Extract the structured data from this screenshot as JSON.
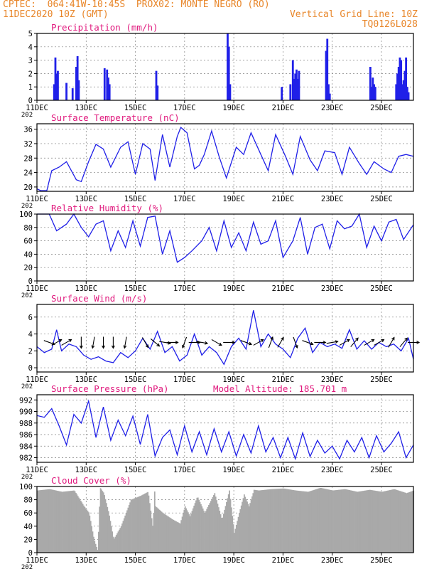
{
  "header": {
    "line1_left": "CPTEC:  064:41W-10:45S  PROX02: MONTE NEGRO (RO)",
    "line2_left": "11DEC2020 10Z (GMT)",
    "line2_right": "Vertical Grid Line: 10Z",
    "line3_right": "TQ0126L028"
  },
  "colors": {
    "header": "#e8862a",
    "title": "#e0197d",
    "line": "#2020e8",
    "bar": "#2020e8",
    "cloud": "#a9a9a9",
    "grid": "#808080"
  },
  "x_axis": {
    "ticks": [
      "11DEC",
      "13DEC",
      "15DEC",
      "17DEC",
      "19DEC",
      "21DEC",
      "23DEC",
      "25DEC"
    ],
    "year_stub": "202",
    "start_day": 11,
    "end_day": 26.3
  },
  "chart_data": [
    {
      "id": "precip",
      "type": "bar",
      "title": "Precipitation (mm/h)",
      "ylim": [
        0,
        5
      ],
      "yticks": [
        0,
        1,
        2,
        3,
        4,
        5
      ],
      "x": [
        11.7,
        11.75,
        11.8,
        11.85,
        12.2,
        12.45,
        12.6,
        12.65,
        12.7,
        13.75,
        13.85,
        13.9,
        13.95,
        15.85,
        15.9,
        18.75,
        18.8,
        18.85,
        20.95,
        21.3,
        21.4,
        21.45,
        21.5,
        21.55,
        21.6,
        21.65,
        22.75,
        22.8,
        22.85,
        22.9,
        24.55,
        24.6,
        24.65,
        24.7,
        24.75,
        25.6,
        25.65,
        25.7,
        25.75,
        25.8,
        25.85,
        25.9,
        25.95,
        26.0,
        26.05,
        26.1
      ],
      "values": [
        1.2,
        3.2,
        2.0,
        2.2,
        1.3,
        0.9,
        2.5,
        3.3,
        1.5,
        2.4,
        2.3,
        1.7,
        1.2,
        2.2,
        1.1,
        5.0,
        4.0,
        1.2,
        1.0,
        1.2,
        3.0,
        1.6,
        2.0,
        2.3,
        1.6,
        2.2,
        3.7,
        4.6,
        1.2,
        0.5,
        2.5,
        1.0,
        1.7,
        1.2,
        1.0,
        1.2,
        2.0,
        2.5,
        3.2,
        3.0,
        1.2,
        1.5,
        2.2,
        3.2,
        1.0,
        0.6
      ]
    },
    {
      "id": "temp",
      "type": "line",
      "title": "Surface Temperature (nC)",
      "ylim": [
        18.8,
        37.5
      ],
      "yticks": [
        20,
        24,
        28,
        32,
        36
      ],
      "x": [
        11,
        11.15,
        11.4,
        11.6,
        11.9,
        12.2,
        12.6,
        12.8,
        13.1,
        13.4,
        13.7,
        14.0,
        14.4,
        14.7,
        15.0,
        15.3,
        15.6,
        15.8,
        16.1,
        16.4,
        16.7,
        16.85,
        17.1,
        17.4,
        17.6,
        17.8,
        18.1,
        18.4,
        18.7,
        19.1,
        19.4,
        19.7,
        20.1,
        20.4,
        20.7,
        21.1,
        21.4,
        21.7,
        22.1,
        22.4,
        22.7,
        23.1,
        23.4,
        23.7,
        24.1,
        24.4,
        24.7,
        25.1,
        25.4,
        25.7,
        26.0,
        26.3
      ],
      "values": [
        19.5,
        19.0,
        19.0,
        24.5,
        25.5,
        27.0,
        22.0,
        21.5,
        27.0,
        31.8,
        30.5,
        25.5,
        31.0,
        32.5,
        23.5,
        32.0,
        30.5,
        21.8,
        34.5,
        25.5,
        34.0,
        36.5,
        35.0,
        25.0,
        26.0,
        29.0,
        35.5,
        28.5,
        22.5,
        31.0,
        29.0,
        35.0,
        29.0,
        24.5,
        34.5,
        28.5,
        23.5,
        34.0,
        27.5,
        24.5,
        30.0,
        29.5,
        23.5,
        31.0,
        26.5,
        23.5,
        27.0,
        25.0,
        24.0,
        28.5,
        29.0,
        28.5
      ]
    },
    {
      "id": "rh",
      "type": "line",
      "title": "Relative Humidity (%)",
      "ylim": [
        0,
        100
      ],
      "yticks": [
        0,
        20,
        40,
        60,
        80,
        100
      ],
      "x": [
        11,
        11.5,
        11.8,
        12.2,
        12.5,
        12.8,
        13.1,
        13.4,
        13.7,
        14.0,
        14.3,
        14.6,
        14.9,
        15.2,
        15.5,
        15.8,
        16.1,
        16.4,
        16.7,
        17.0,
        17.3,
        17.7,
        18.0,
        18.3,
        18.6,
        18.9,
        19.2,
        19.5,
        19.8,
        20.1,
        20.4,
        20.7,
        21.0,
        21.4,
        21.7,
        22.0,
        22.3,
        22.6,
        22.9,
        23.2,
        23.5,
        23.8,
        24.1,
        24.4,
        24.7,
        25.0,
        25.3,
        25.6,
        25.9,
        26.3
      ],
      "values": [
        100,
        100,
        75,
        85,
        100,
        80,
        66,
        85,
        90,
        45,
        75,
        50,
        90,
        52,
        95,
        97,
        40,
        75,
        28,
        35,
        45,
        60,
        80,
        45,
        90,
        50,
        72,
        45,
        88,
        55,
        60,
        90,
        35,
        60,
        95,
        40,
        80,
        85,
        48,
        90,
        78,
        82,
        100,
        50,
        82,
        60,
        88,
        92,
        62,
        84
      ]
    },
    {
      "id": "wind",
      "type": "line",
      "title": "Surface Wind (m/s)",
      "ylim": [
        -0.5,
        7.5
      ],
      "yticks": [
        0,
        2,
        4,
        6
      ],
      "x": [
        11,
        11.3,
        11.6,
        11.8,
        12.0,
        12.3,
        12.6,
        12.9,
        13.2,
        13.5,
        13.8,
        14.1,
        14.4,
        14.7,
        15.0,
        15.3,
        15.6,
        15.9,
        16.2,
        16.5,
        16.8,
        17.1,
        17.4,
        17.7,
        18.0,
        18.3,
        18.6,
        18.9,
        19.2,
        19.5,
        19.8,
        20.1,
        20.4,
        20.7,
        21.0,
        21.3,
        21.6,
        21.9,
        22.2,
        22.5,
        22.8,
        23.1,
        23.4,
        23.7,
        24.0,
        24.3,
        24.6,
        24.9,
        25.2,
        25.5,
        25.8,
        26.1,
        26.3
      ],
      "values": [
        2.5,
        1.8,
        2.2,
        4.5,
        2.0,
        2.8,
        2.5,
        1.5,
        1.0,
        1.3,
        0.8,
        0.6,
        1.8,
        1.2,
        2.0,
        3.5,
        2.2,
        4.3,
        1.8,
        2.5,
        0.8,
        1.5,
        4.0,
        1.5,
        2.5,
        1.8,
        0.4,
        2.5,
        3.5,
        2.2,
        6.8,
        2.5,
        4.0,
        2.8,
        2.2,
        1.2,
        3.5,
        4.7,
        1.8,
        3.0,
        2.5,
        2.8,
        2.3,
        4.5,
        2.2,
        3.2,
        2.2,
        3.0,
        2.5,
        2.8,
        2.0,
        3.5,
        1.0
      ],
      "arrows": {
        "x": [
          11.5,
          11.8,
          12.2,
          12.8,
          13.3,
          13.7,
          14.1,
          14.6,
          15.4,
          15.8,
          16.2,
          16.5,
          17.0,
          17.4,
          17.7,
          18.3,
          18.8,
          19.5,
          20.0,
          20.5,
          20.9,
          21.5,
          22.0,
          22.5,
          23.0,
          23.5,
          23.9,
          24.5,
          24.9,
          25.4,
          25.9,
          26.3
        ],
        "angle_deg": [
          110,
          60,
          60,
          180,
          190,
          180,
          180,
          190,
          150,
          130,
          100,
          90,
          200,
          90,
          100,
          120,
          90,
          110,
          60,
          20,
          30,
          160,
          110,
          90,
          80,
          60,
          40,
          60,
          60,
          30,
          40,
          90
        ]
      }
    },
    {
      "id": "press",
      "type": "line",
      "title": "Surface Pressure (hPa)",
      "subtitle": "Model Altitude: 185.701 m",
      "ylim": [
        981.2,
        992.9
      ],
      "yticks": [
        982,
        984,
        986,
        988,
        990,
        992
      ],
      "x": [
        11,
        11.3,
        11.6,
        11.9,
        12.2,
        12.5,
        12.8,
        13.1,
        13.4,
        13.7,
        14.0,
        14.3,
        14.6,
        14.9,
        15.2,
        15.5,
        15.8,
        16.1,
        16.4,
        16.7,
        17.0,
        17.3,
        17.6,
        17.9,
        18.2,
        18.5,
        18.8,
        19.1,
        19.4,
        19.7,
        20.0,
        20.3,
        20.6,
        20.9,
        21.2,
        21.5,
        21.8,
        22.1,
        22.4,
        22.7,
        23.0,
        23.3,
        23.6,
        23.9,
        24.2,
        24.5,
        24.8,
        25.1,
        25.4,
        25.7,
        26.0,
        26.3
      ],
      "values": [
        989.3,
        989.0,
        990.5,
        987.5,
        984.2,
        989.5,
        988.0,
        991.8,
        985.5,
        990.8,
        985.0,
        988.5,
        985.8,
        989.2,
        984.3,
        989.5,
        982.3,
        985.5,
        986.8,
        982.5,
        987.5,
        983.0,
        986.5,
        982.5,
        987.0,
        983.0,
        986.5,
        982.3,
        986.0,
        982.8,
        987.5,
        983.0,
        985.5,
        982.0,
        985.5,
        981.8,
        986.3,
        982.2,
        985.0,
        982.8,
        984.0,
        981.8,
        985.0,
        983.0,
        985.5,
        982.0,
        985.8,
        983.0,
        984.5,
        986.5,
        982.0,
        984.2
      ]
    },
    {
      "id": "cloud",
      "type": "area",
      "title": "Cloud Cover (%)",
      "ylim": [
        0,
        100
      ],
      "yticks": [
        0,
        20,
        40,
        60,
        80,
        100
      ],
      "x": [
        11,
        11.5,
        12.0,
        12.5,
        12.9,
        13.1,
        13.3,
        13.45,
        13.55,
        13.7,
        13.9,
        14.1,
        14.4,
        14.8,
        15.2,
        15.5,
        15.7,
        15.75,
        15.8,
        16.1,
        16.5,
        16.8,
        17.0,
        17.2,
        17.5,
        17.8,
        18.2,
        18.5,
        18.8,
        19.0,
        19.2,
        19.4,
        19.6,
        19.8,
        20.0,
        20.5,
        21.0,
        21.5,
        22.0,
        22.5,
        23.0,
        23.5,
        24.0,
        24.5,
        25.0,
        25.5,
        26.0,
        26.3
      ],
      "values": [
        94,
        96,
        92,
        94,
        70,
        60,
        20,
        3,
        98,
        90,
        60,
        20,
        40,
        80,
        86,
        92,
        35,
        98,
        70,
        60,
        50,
        44,
        70,
        55,
        85,
        60,
        90,
        50,
        94,
        30,
        60,
        88,
        70,
        95,
        94,
        96,
        97,
        94,
        92,
        98,
        94,
        96,
        92,
        95,
        92,
        96,
        90,
        94
      ]
    }
  ]
}
